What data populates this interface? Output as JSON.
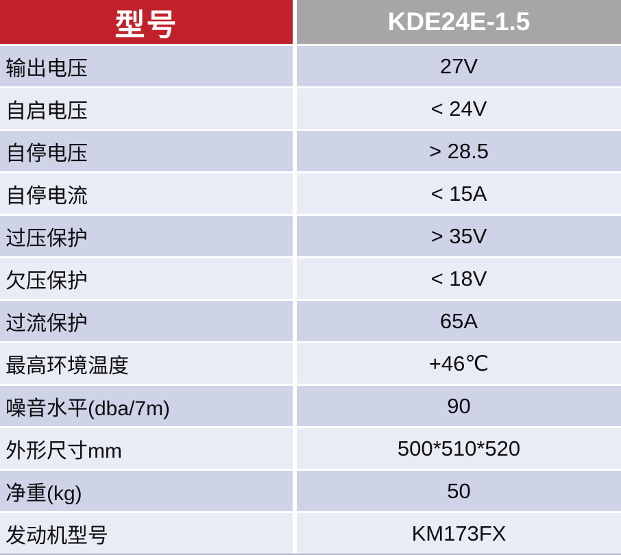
{
  "table": {
    "header": {
      "model_label": "型号",
      "model_value": "KDE24E-1.5"
    },
    "rows": [
      {
        "label": "输出电压",
        "value": "27V"
      },
      {
        "label": "自启电压",
        "value": "< 24V"
      },
      {
        "label": "自停电压",
        "value": "> 28.5"
      },
      {
        "label": "自停电流",
        "value": "< 15A"
      },
      {
        "label": "过压保护",
        "value": "> 35V"
      },
      {
        "label": "欠压保护",
        "value": "< 18V"
      },
      {
        "label": "过流保护",
        "value": "65A"
      },
      {
        "label": "最高环境温度",
        "value": "+46℃"
      },
      {
        "label": "噪音水平(dba/7m)",
        "value": "90"
      },
      {
        "label": "外形尺寸mm",
        "value": "500*510*520"
      },
      {
        "label": "净重(kg)",
        "value": "50"
      },
      {
        "label": "发动机型号",
        "value": "KM173FX"
      }
    ],
    "colors": {
      "header_left_bg": "#c1212a",
      "header_right_bg": "#a6a6a6",
      "band_dark": "#ced3e8",
      "band_light": "#e9ebf5",
      "divider": "#ffffff",
      "header_text": "#ffffff",
      "body_text": "#0d0d0d",
      "bottom_edge": "#aeb3c6"
    }
  }
}
